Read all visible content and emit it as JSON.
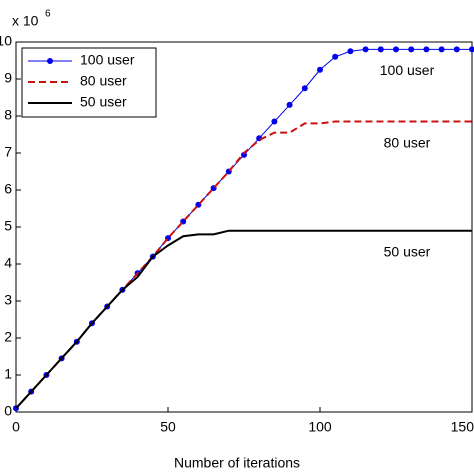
{
  "chart_data": {
    "type": "line",
    "xlabel": "Number of iterations",
    "exponent_label": "x 10",
    "exponent_power": "6",
    "x": [
      0,
      5,
      10,
      15,
      20,
      25,
      30,
      35,
      40,
      45,
      50,
      55,
      60,
      65,
      70,
      75,
      80,
      85,
      90,
      95,
      100,
      105,
      110,
      115,
      120,
      125,
      130,
      135,
      140,
      145,
      150
    ],
    "series": [
      {
        "name": "100 user",
        "color": "#0000ee",
        "linestyle": "solid",
        "marker": "dot",
        "values": [
          0.1,
          0.55,
          1.0,
          1.45,
          1.9,
          2.4,
          2.85,
          3.3,
          3.75,
          4.2,
          4.7,
          5.15,
          5.6,
          6.05,
          6.5,
          6.95,
          7.4,
          7.85,
          8.3,
          8.75,
          9.25,
          9.6,
          9.75,
          9.8,
          9.8,
          9.8,
          9.8,
          9.8,
          9.8,
          9.8,
          9.8
        ]
      },
      {
        "name": "80 user",
        "color": "#cc1111",
        "linestyle": "dashed",
        "marker": "none",
        "values": [
          0.1,
          0.55,
          1.0,
          1.45,
          1.9,
          2.4,
          2.85,
          3.3,
          3.75,
          4.2,
          4.7,
          5.15,
          5.6,
          6.05,
          6.5,
          7.0,
          7.35,
          7.55,
          7.55,
          7.8,
          7.8,
          7.85,
          7.85,
          7.85,
          7.85,
          7.85,
          7.85,
          7.85,
          7.85,
          7.85,
          7.85
        ]
      },
      {
        "name": "50 user",
        "color": "#000000",
        "linestyle": "solid",
        "marker": "none",
        "values": [
          0.1,
          0.55,
          1.0,
          1.45,
          1.9,
          2.4,
          2.85,
          3.3,
          3.65,
          4.2,
          4.5,
          4.75,
          4.8,
          4.8,
          4.9,
          4.9,
          4.9,
          4.9,
          4.9,
          4.9,
          4.9,
          4.9,
          4.9,
          4.9,
          4.9,
          4.9,
          4.9,
          4.9,
          4.9,
          4.9,
          4.9
        ]
      }
    ],
    "annotations": [
      "100 user",
      "80 user",
      "50 user"
    ],
    "xlim": [
      0,
      150
    ],
    "xticks": [
      0,
      50,
      100,
      150
    ],
    "ylim": [
      0,
      10
    ],
    "yticks": [
      0,
      1,
      2,
      3,
      4,
      5,
      6,
      7,
      8,
      9,
      10
    ],
    "legend": "upper left",
    "grid": false
  }
}
